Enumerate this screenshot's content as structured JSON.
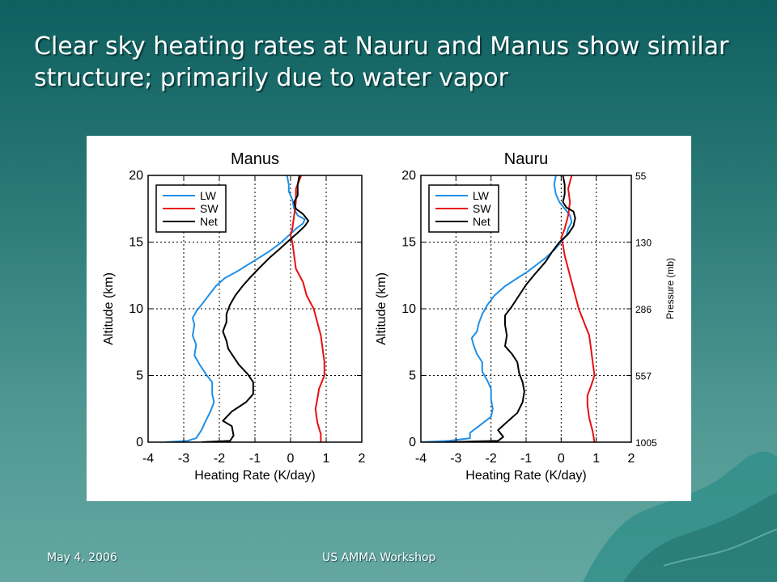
{
  "slide": {
    "title": "Clear sky heating rates at Nauru and Manus show similar structure; primarily due to water vapor",
    "footer_date": "May 4, 2006",
    "footer_event": "US AMMA Workshop"
  },
  "colors": {
    "LW": "#1f8fe8",
    "SW": "#e8100f",
    "Net": "#000000"
  },
  "chart_data": [
    {
      "type": "line",
      "title": "Manus",
      "xlabel": "Heating Rate (K/day)",
      "ylabel": "Altitude (km)",
      "xlim": [
        -4,
        2
      ],
      "ylim": [
        0,
        20
      ],
      "xticks": [
        "-4",
        "-3",
        "-2",
        "-1",
        "0",
        "1",
        "2"
      ],
      "yticks": [
        "0",
        "5",
        "10",
        "15",
        "20"
      ],
      "grid": true,
      "legend": {
        "position": "top-left",
        "entries": [
          "LW",
          "SW",
          "Net"
        ]
      },
      "series": [
        {
          "name": "LW",
          "points": [
            [
              -3.5,
              0
            ],
            [
              -2.9,
              0.1
            ],
            [
              -2.65,
              0.3
            ],
            [
              -2.5,
              0.9
            ],
            [
              -2.4,
              1.5
            ],
            [
              -2.25,
              2.3
            ],
            [
              -2.15,
              3
            ],
            [
              -2.2,
              3.6
            ],
            [
              -2.2,
              4.5
            ],
            [
              -2.35,
              5
            ],
            [
              -2.55,
              5.8
            ],
            [
              -2.7,
              6.5
            ],
            [
              -2.65,
              7.3
            ],
            [
              -2.75,
              8
            ],
            [
              -2.7,
              8.8
            ],
            [
              -2.75,
              9.3
            ],
            [
              -2.65,
              9.8
            ],
            [
              -2.5,
              10.3
            ],
            [
              -2.3,
              11
            ],
            [
              -2.1,
              11.7
            ],
            [
              -1.85,
              12.3
            ],
            [
              -1.5,
              12.8
            ],
            [
              -1.2,
              13.3
            ],
            [
              -0.9,
              13.8
            ],
            [
              -0.6,
              14.3
            ],
            [
              -0.3,
              14.9
            ],
            [
              -0.05,
              15.5
            ],
            [
              0.15,
              16
            ],
            [
              0.35,
              16.4
            ],
            [
              0.4,
              16.7
            ],
            [
              0.2,
              17
            ],
            [
              0.1,
              17.5
            ],
            [
              0.05,
              18.2
            ],
            [
              -0.05,
              18.8
            ],
            [
              -0.05,
              19.3
            ],
            [
              -0.1,
              20
            ]
          ]
        },
        {
          "name": "SW",
          "points": [
            [
              0.85,
              0
            ],
            [
              0.85,
              0.6
            ],
            [
              0.75,
              1.5
            ],
            [
              0.7,
              2.5
            ],
            [
              0.75,
              3.2
            ],
            [
              0.8,
              4
            ],
            [
              0.95,
              5
            ],
            [
              0.95,
              6
            ],
            [
              0.9,
              7
            ],
            [
              0.85,
              8
            ],
            [
              0.75,
              9
            ],
            [
              0.65,
              10
            ],
            [
              0.45,
              11
            ],
            [
              0.35,
              12
            ],
            [
              0.15,
              13
            ],
            [
              0.1,
              14
            ],
            [
              0.05,
              15
            ],
            [
              0.0,
              15.5
            ],
            [
              0.05,
              16
            ],
            [
              0.1,
              17
            ],
            [
              0.15,
              18
            ],
            [
              0.15,
              19
            ],
            [
              0.3,
              20
            ]
          ]
        },
        {
          "name": "Net",
          "points": [
            [
              -2.5,
              0
            ],
            [
              -1.7,
              0.1
            ],
            [
              -1.6,
              0.5
            ],
            [
              -1.65,
              1.2
            ],
            [
              -1.9,
              1.6
            ],
            [
              -1.65,
              2.3
            ],
            [
              -1.25,
              3
            ],
            [
              -1.05,
              3.6
            ],
            [
              -1.05,
              4.5
            ],
            [
              -1.2,
              5.1
            ],
            [
              -1.45,
              5.8
            ],
            [
              -1.6,
              6.4
            ],
            [
              -1.75,
              7
            ],
            [
              -1.8,
              7.6
            ],
            [
              -1.9,
              8.3
            ],
            [
              -1.8,
              9
            ],
            [
              -1.8,
              9.6
            ],
            [
              -1.7,
              10.3
            ],
            [
              -1.55,
              11
            ],
            [
              -1.35,
              11.7
            ],
            [
              -1.15,
              12.3
            ],
            [
              -0.9,
              13
            ],
            [
              -0.6,
              13.8
            ],
            [
              -0.3,
              14.5
            ],
            [
              -0.05,
              15.1
            ],
            [
              0.2,
              15.7
            ],
            [
              0.4,
              16.2
            ],
            [
              0.5,
              16.6
            ],
            [
              0.35,
              17.1
            ],
            [
              0.15,
              17.5
            ],
            [
              0.1,
              18
            ],
            [
              0.2,
              18.5
            ],
            [
              0.2,
              19.3
            ],
            [
              0.25,
              20
            ]
          ]
        }
      ]
    },
    {
      "type": "line",
      "title": "Nauru",
      "xlabel": "Heating Rate (K/day)",
      "ylabel": "Altitude (km)",
      "xlim": [
        -4,
        2
      ],
      "ylim": [
        0,
        20
      ],
      "xticks": [
        "-4",
        "-3",
        "-2",
        "-1",
        "0",
        "1",
        "2"
      ],
      "yticks": [
        "0",
        "5",
        "10",
        "15",
        "20"
      ],
      "grid": true,
      "legend": {
        "position": "top-left",
        "entries": [
          "LW",
          "SW",
          "Net"
        ]
      },
      "right_axis": {
        "label": "Pressure (mb)",
        "ticks": [
          {
            "altitude": 20,
            "label": "55"
          },
          {
            "altitude": 15,
            "label": "130"
          },
          {
            "altitude": 10,
            "label": "286"
          },
          {
            "altitude": 5,
            "label": "557"
          },
          {
            "altitude": 0,
            "label": "1005"
          }
        ]
      },
      "series": [
        {
          "name": "LW",
          "points": [
            [
              -4,
              0
            ],
            [
              -3.2,
              0.1
            ],
            [
              -2.6,
              0.3
            ],
            [
              -2.6,
              0.7
            ],
            [
              -2.3,
              1.3
            ],
            [
              -2.0,
              1.9
            ],
            [
              -1.95,
              2.5
            ],
            [
              -2.0,
              3.2
            ],
            [
              -2.0,
              4
            ],
            [
              -2.1,
              4.6
            ],
            [
              -2.25,
              5.3
            ],
            [
              -2.25,
              6
            ],
            [
              -2.4,
              6.6
            ],
            [
              -2.5,
              7.3
            ],
            [
              -2.55,
              7.8
            ],
            [
              -2.4,
              8.3
            ],
            [
              -2.35,
              8.9
            ],
            [
              -2.25,
              9.6
            ],
            [
              -2.1,
              10.3
            ],
            [
              -1.9,
              11
            ],
            [
              -1.6,
              11.7
            ],
            [
              -1.25,
              12.3
            ],
            [
              -0.95,
              12.8
            ],
            [
              -0.7,
              13.3
            ],
            [
              -0.45,
              13.8
            ],
            [
              -0.2,
              14.4
            ],
            [
              0.0,
              15
            ],
            [
              0.15,
              15.5
            ],
            [
              0.2,
              16
            ],
            [
              0.3,
              16.5
            ],
            [
              0.25,
              17
            ],
            [
              0.1,
              17.5
            ],
            [
              -0.05,
              18
            ],
            [
              -0.15,
              18.6
            ],
            [
              -0.2,
              19.3
            ],
            [
              -0.15,
              20
            ]
          ]
        },
        {
          "name": "SW",
          "points": [
            [
              0.95,
              0
            ],
            [
              0.9,
              0.8
            ],
            [
              0.8,
              1.8
            ],
            [
              0.75,
              2.8
            ],
            [
              0.75,
              3.5
            ],
            [
              0.85,
              4.2
            ],
            [
              0.95,
              5
            ],
            [
              0.9,
              6
            ],
            [
              0.85,
              7
            ],
            [
              0.8,
              8
            ],
            [
              0.65,
              9
            ],
            [
              0.5,
              10
            ],
            [
              0.4,
              11
            ],
            [
              0.3,
              12
            ],
            [
              0.2,
              13
            ],
            [
              0.1,
              14
            ],
            [
              0.05,
              14.8
            ],
            [
              0.0,
              15.3
            ],
            [
              0.1,
              16
            ],
            [
              0.2,
              17
            ],
            [
              0.25,
              18
            ],
            [
              0.2,
              19
            ],
            [
              0.3,
              20
            ]
          ]
        },
        {
          "name": "Net",
          "points": [
            [
              -3.3,
              0
            ],
            [
              -1.8,
              0.1
            ],
            [
              -1.65,
              0.4
            ],
            [
              -1.8,
              0.9
            ],
            [
              -1.55,
              1.5
            ],
            [
              -1.25,
              2.2
            ],
            [
              -1.1,
              3
            ],
            [
              -1.05,
              3.8
            ],
            [
              -1.1,
              4.5
            ],
            [
              -1.2,
              5.2
            ],
            [
              -1.25,
              6
            ],
            [
              -1.4,
              6.6
            ],
            [
              -1.6,
              7.2
            ],
            [
              -1.55,
              8
            ],
            [
              -1.6,
              8.8
            ],
            [
              -1.6,
              9.5
            ],
            [
              -1.4,
              10.2
            ],
            [
              -1.2,
              11
            ],
            [
              -1.0,
              11.8
            ],
            [
              -0.75,
              12.6
            ],
            [
              -0.45,
              13.5
            ],
            [
              -0.25,
              14.3
            ],
            [
              -0.05,
              15
            ],
            [
              0.2,
              15.6
            ],
            [
              0.35,
              16.2
            ],
            [
              0.4,
              16.8
            ],
            [
              0.35,
              17.3
            ],
            [
              0.15,
              17.6
            ],
            [
              0.05,
              18
            ],
            [
              0.1,
              18.6
            ],
            [
              0.1,
              19.3
            ],
            [
              0.05,
              20
            ]
          ]
        }
      ]
    }
  ]
}
